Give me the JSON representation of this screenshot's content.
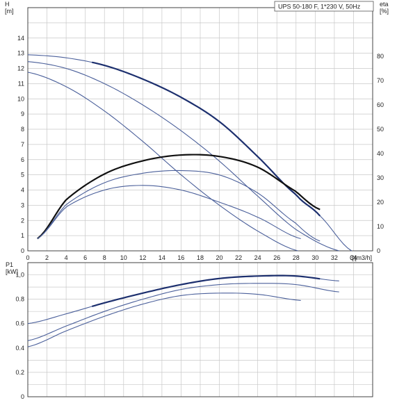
{
  "chart_data": [
    {
      "type": "line",
      "title": "UPS 50-180 F, 1*230 V, 50Hz",
      "xlabel": "Q[m3/h]",
      "ylabel": "H [m]",
      "ylabel_right": "eta [%]",
      "xlim": [
        0,
        36
      ],
      "ylim": [
        0,
        16
      ],
      "ylim_right": [
        0,
        100
      ],
      "grid": true,
      "x_ticks": [
        "0",
        "2",
        "4",
        "6",
        "8",
        "10",
        "12",
        "14",
        "16",
        "18",
        "20",
        "22",
        "24",
        "26",
        "28",
        "30",
        "32",
        "34"
      ],
      "y_ticks": [
        "0",
        "1",
        "2",
        "3",
        "4",
        "5",
        "6",
        "7",
        "8",
        "9",
        "10",
        "11",
        "12",
        "13",
        "14"
      ],
      "y_right_ticks": [
        "0",
        "10",
        "20",
        "30",
        "40",
        "50",
        "60",
        "70",
        "80"
      ],
      "series": [
        {
          "axis": "left",
          "x": [
            0,
            4,
            8,
            12,
            16,
            20,
            24,
            28,
            30.5,
            33.8
          ],
          "y": [
            12.9,
            12.7,
            12.2,
            11.3,
            10.1,
            8.5,
            6.2,
            3.7,
            2.3,
            0
          ],
          "highlight": [
            6.7,
            30.5
          ]
        },
        {
          "axis": "left",
          "x": [
            0,
            4,
            8,
            12,
            16,
            20,
            24,
            28,
            32.5
          ],
          "y": [
            12.45,
            12.0,
            11.0,
            9.6,
            7.9,
            5.9,
            3.6,
            1.4,
            0
          ]
        },
        {
          "axis": "left",
          "x": [
            0,
            4,
            8,
            12,
            16,
            20,
            24,
            28.2
          ],
          "y": [
            11.75,
            10.8,
            9.2,
            7.2,
            5.0,
            3.0,
            1.3,
            0
          ]
        },
        {
          "axis": "right",
          "x": [
            1,
            4,
            8,
            12,
            16,
            20,
            24,
            28,
            30.5
          ],
          "y": [
            5,
            21,
            31.6,
            37,
            39.4,
            38.8,
            34.4,
            24.4,
            17
          ],
          "highlight": [
            1,
            30.5
          ]
        },
        {
          "axis": "right",
          "x": [
            1,
            4,
            8,
            12,
            16,
            20,
            24,
            28,
            30.5
          ],
          "y": [
            5,
            19,
            28,
            31.9,
            33,
            31.2,
            23.8,
            11.3,
            4
          ]
        },
        {
          "axis": "right",
          "x": [
            1,
            4,
            8,
            12,
            16,
            20,
            24,
            28.5
          ],
          "y": [
            5,
            18,
            25,
            26.9,
            25,
            20,
            13.8,
            5
          ]
        }
      ]
    },
    {
      "type": "line",
      "ylabel": "P1 [kW]",
      "xlim": [
        0,
        36
      ],
      "ylim": [
        0,
        1.1
      ],
      "grid": true,
      "y_ticks": [
        "0",
        "0.2",
        "0.4",
        "0.6",
        "0.8",
        "1,0"
      ],
      "series": [
        {
          "x": [
            0,
            4,
            8,
            12,
            16,
            20,
            24,
            28,
            32.5
          ],
          "y": [
            0.6,
            0.68,
            0.77,
            0.85,
            0.92,
            0.97,
            0.99,
            0.99,
            0.95
          ],
          "highlight": [
            6.7,
            30.5
          ]
        },
        {
          "x": [
            0,
            4,
            8,
            12,
            16,
            20,
            24,
            28,
            32.5
          ],
          "y": [
            0.46,
            0.58,
            0.7,
            0.8,
            0.88,
            0.92,
            0.93,
            0.92,
            0.86
          ]
        },
        {
          "x": [
            0,
            4,
            8,
            12,
            16,
            20,
            24,
            28.5
          ],
          "y": [
            0.41,
            0.54,
            0.66,
            0.76,
            0.83,
            0.85,
            0.84,
            0.79
          ]
        }
      ]
    }
  ],
  "colors": {
    "curve": "#4a5f9a",
    "highlight": "#1c2f6e",
    "eta_highlight": "#111111",
    "grid": "#c8c8c8",
    "axis": "#333333"
  }
}
